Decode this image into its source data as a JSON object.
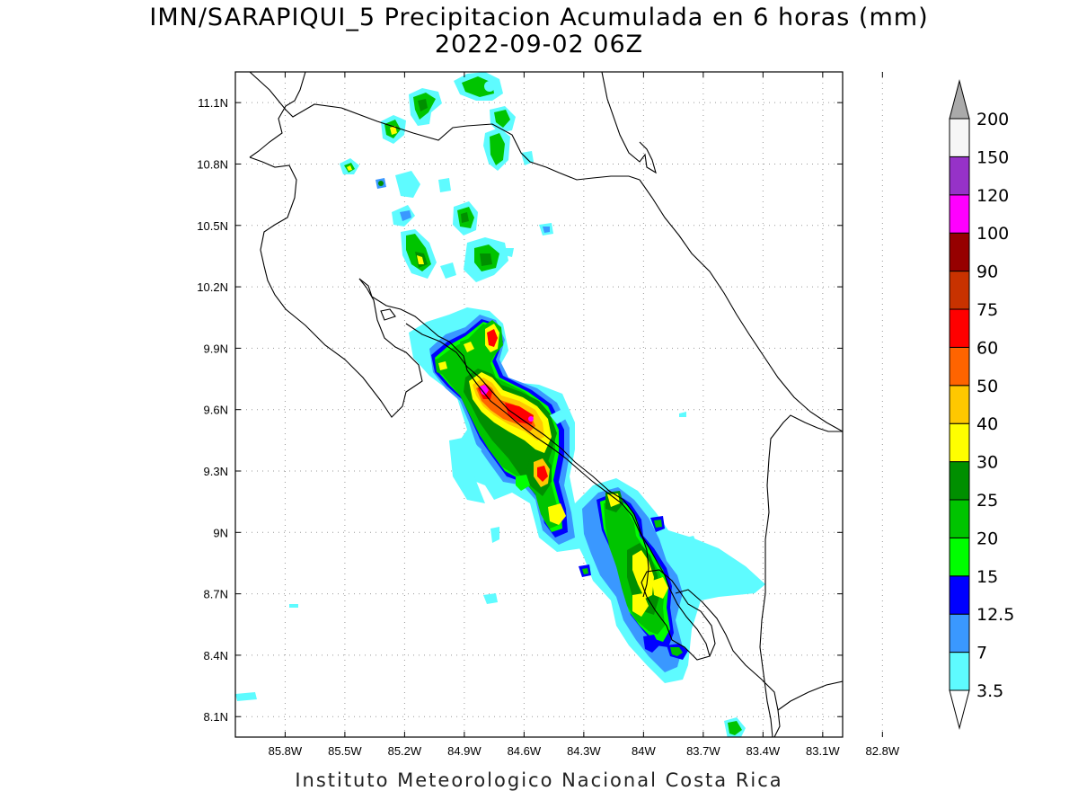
{
  "title_line1": "IMN/SARAPIQUI_5 Precipitacion Acumulada en 6 horas (mm)",
  "title_line2": "2022-09-02 06Z",
  "footer": "Instituto Meteorologico Nacional Costa Rica",
  "map": {
    "lon_range": [
      -86.05,
      -83.0
    ],
    "lat_range": [
      8.0,
      11.25
    ],
    "lon_ticks": [
      {
        "lon": -85.8,
        "label": "85.8W"
      },
      {
        "lon": -85.5,
        "label": "85.5W"
      },
      {
        "lon": -85.2,
        "label": "85.2W"
      },
      {
        "lon": -84.9,
        "label": "84.9W"
      },
      {
        "lon": -84.6,
        "label": "84.6W"
      },
      {
        "lon": -84.3,
        "label": "84.3W"
      },
      {
        "lon": -84.0,
        "label": "84W"
      },
      {
        "lon": -83.7,
        "label": "83.7W"
      },
      {
        "lon": -83.4,
        "label": "83.4W"
      },
      {
        "lon": -83.1,
        "label": "83.1W"
      },
      {
        "lon": -82.8,
        "label": "82.8W"
      }
    ],
    "lat_ticks": [
      {
        "lat": 11.1,
        "label": "11.1N"
      },
      {
        "lat": 10.8,
        "label": "10.8N"
      },
      {
        "lat": 10.5,
        "label": "10.5N"
      },
      {
        "lat": 10.2,
        "label": "10.2N"
      },
      {
        "lat": 9.9,
        "label": "9.9N"
      },
      {
        "lat": 9.6,
        "label": "9.6N"
      },
      {
        "lat": 9.3,
        "label": "9.3N"
      },
      {
        "lat": 9.0,
        "label": "9N"
      },
      {
        "lat": 8.7,
        "label": "8.7N"
      },
      {
        "lat": 8.4,
        "label": "8.4N"
      },
      {
        "lat": 8.1,
        "label": "8.1N"
      }
    ]
  },
  "colorbar": {
    "bins": [
      {
        "label": "3.5",
        "color": "#5efbff"
      },
      {
        "label": "7",
        "color": "#3a98ff"
      },
      {
        "label": "12.5",
        "color": "#0000ff"
      },
      {
        "label": "15",
        "color": "#00ff00"
      },
      {
        "label": "20",
        "color": "#00c400"
      },
      {
        "label": "25",
        "color": "#008f00"
      },
      {
        "label": "30",
        "color": "#ffff00"
      },
      {
        "label": "40",
        "color": "#ffc800"
      },
      {
        "label": "50",
        "color": "#ff6400"
      },
      {
        "label": "60",
        "color": "#ff0000"
      },
      {
        "label": "75",
        "color": "#c83200"
      },
      {
        "label": "90",
        "color": "#960000"
      },
      {
        "label": "100",
        "color": "#ff00ff"
      },
      {
        "label": "120",
        "color": "#9632c8"
      },
      {
        "label": "150",
        "color": "#f6f6f6"
      },
      {
        "label": "200",
        "color": "#aaaaaa"
      }
    ]
  },
  "colors": {
    "c1": "#5efbff",
    "c2": "#3a98ff",
    "c3": "#0000ff",
    "c4": "#00ff00",
    "c5": "#00c400",
    "c6": "#008f00",
    "c7": "#ffff00",
    "c8": "#ffc800",
    "c9": "#ff6400",
    "c10": "#ff0000",
    "c12": "#ff00ff"
  }
}
